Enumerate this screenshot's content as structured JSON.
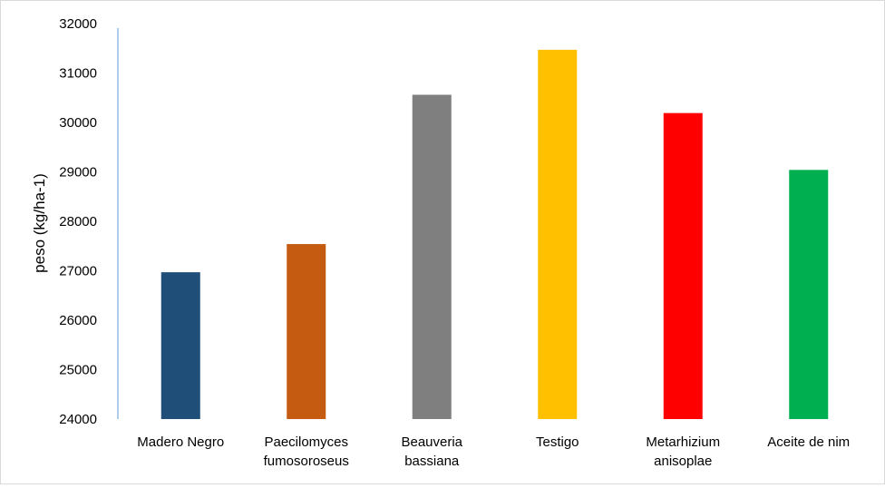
{
  "chart_data": {
    "type": "bar",
    "title": "",
    "xlabel": "",
    "ylabel": "peso (kg/ha-1)",
    "ylim": [
      24000,
      32000
    ],
    "yticks": [
      24000,
      25000,
      26000,
      27000,
      28000,
      29000,
      30000,
      31000,
      32000
    ],
    "grid": false,
    "legend": "none",
    "categories": [
      [
        "Madero Negro"
      ],
      [
        "Paecilomyces",
        "fumosoroseus"
      ],
      [
        "Beauveria",
        "bassiana"
      ],
      [
        "Testigo"
      ],
      [
        "Metarhizium",
        "anisoplae"
      ],
      [
        "Aceite de nim"
      ]
    ],
    "values": [
      26970,
      27540,
      30560,
      31470,
      30190,
      29040
    ],
    "colors": [
      "#1f4e79",
      "#c55a11",
      "#7f7f7f",
      "#ffc000",
      "#ff0000",
      "#00b050"
    ],
    "axis_color": "#5b9bd5"
  }
}
